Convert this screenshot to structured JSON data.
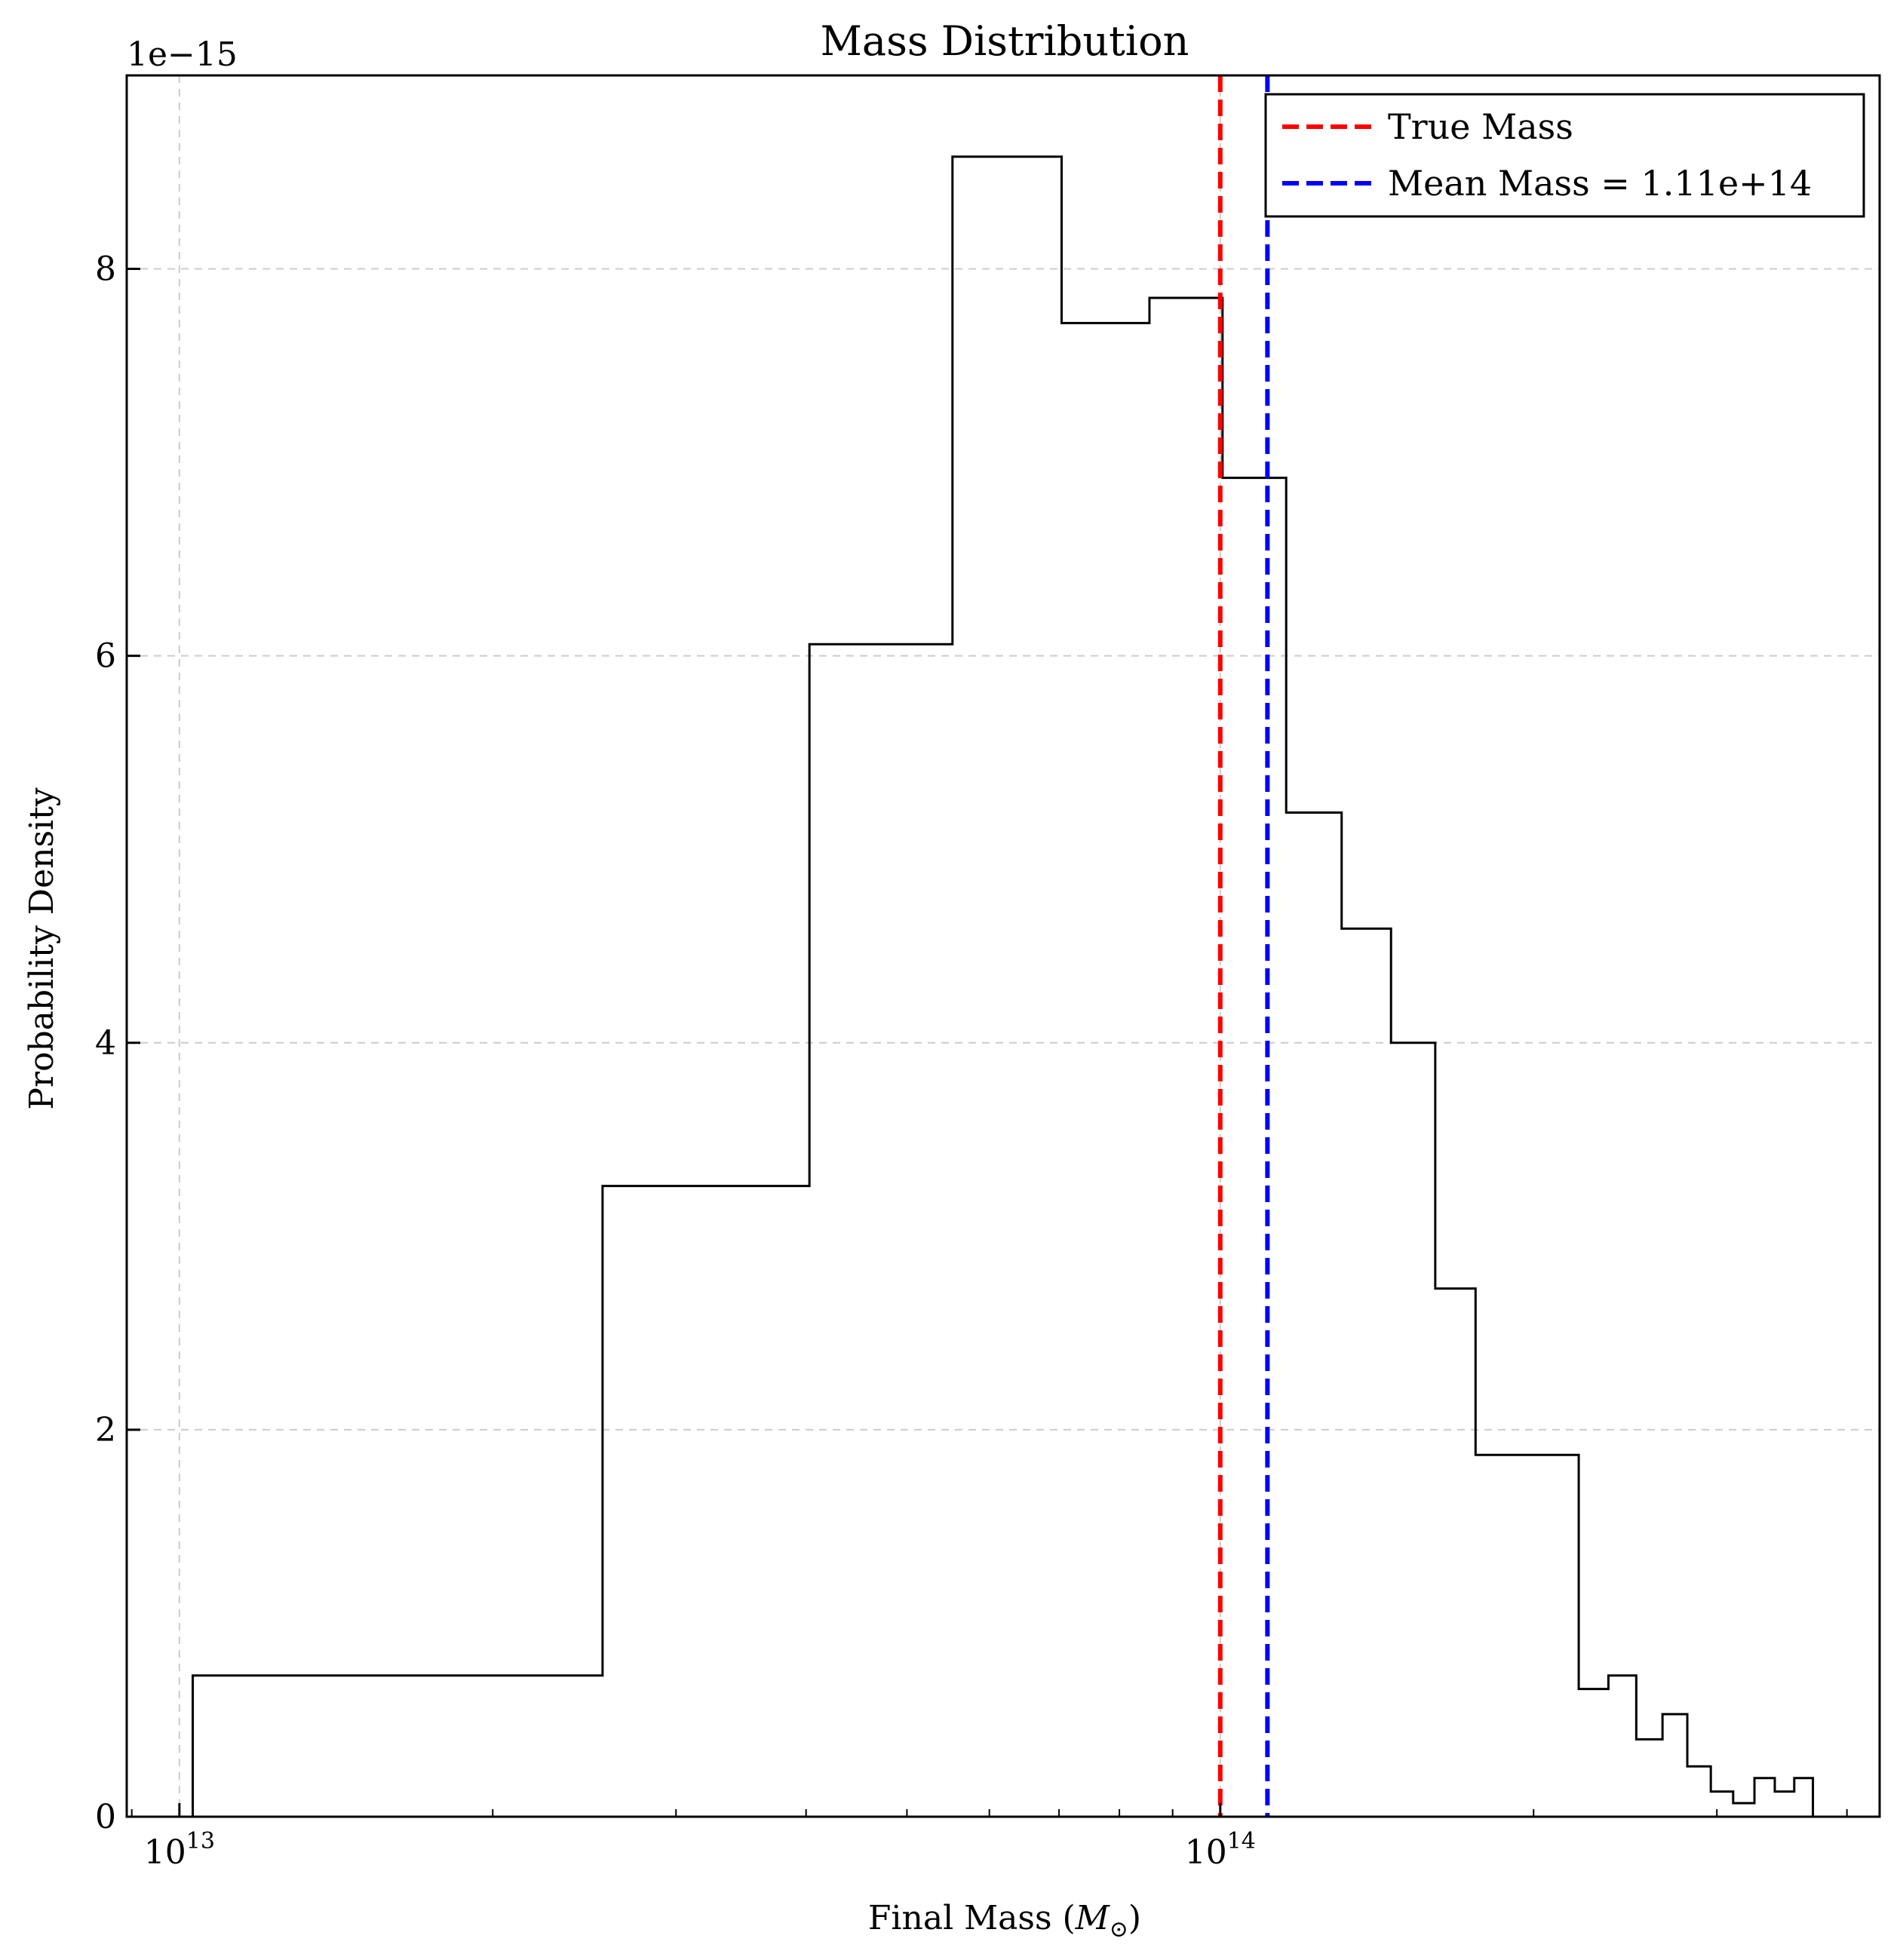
{
  "chart_data": {
    "type": "histogram",
    "title": "Mass Distribution",
    "xlabel": "Final Mass ($M_\\odot$)",
    "xlabel_main": "Final Mass (",
    "xlabel_symbol": "M",
    "xlabel_subscript": "⊙",
    "xlabel_close": ")",
    "ylabel": "Probability Density",
    "y_offset_label": "1e−15",
    "y_scale_factor": 1e-15,
    "xscale": "log",
    "xlim": [
      8900000000000.0,
      430000000000000.0
    ],
    "ylim": [
      0,
      9.0
    ],
    "grid": true,
    "x_ticks": [
      {
        "value": 10000000000000.0,
        "base": "10",
        "exp": "13"
      },
      {
        "value": 100000000000000.0,
        "base": "10",
        "exp": "14"
      }
    ],
    "y_ticks": [
      0,
      2,
      4,
      6,
      8
    ],
    "bins": [
      {
        "x0": 10300000000000.0,
        "x1": 25500000000000.0,
        "value": 0.73
      },
      {
        "x0": 25500000000000.0,
        "x1": 40300000000000.0,
        "value": 3.26
      },
      {
        "x0": 40300000000000.0,
        "x1": 55300000000000.0,
        "value": 6.06
      },
      {
        "x0": 55300000000000.0,
        "x1": 70400000000000.0,
        "value": 8.58
      },
      {
        "x0": 70400000000000.0,
        "x1": 85500000000000.0,
        "value": 7.72
      },
      {
        "x0": 85500000000000.0,
        "x1": 100500000000000.0,
        "value": 7.85
      },
      {
        "x0": 100500000000000.0,
        "x1": 115700000000000.0,
        "value": 6.92
      },
      {
        "x0": 115700000000000.0,
        "x1": 130800000000000.0,
        "value": 5.19
      },
      {
        "x0": 130800000000000.0,
        "x1": 145900000000000.0,
        "value": 4.59
      },
      {
        "x0": 145900000000000.0,
        "x1": 160900000000000.0,
        "value": 4.0
      },
      {
        "x0": 160900000000000.0,
        "x1": 175900000000000.0,
        "value": 2.73
      },
      {
        "x0": 175900000000000.0,
        "x1": 221000000000000.0,
        "value": 1.87
      },
      {
        "x0": 221000000000000.0,
        "x1": 236000000000000.0,
        "value": 0.66
      },
      {
        "x0": 236000000000000.0,
        "x1": 251000000000000.0,
        "value": 0.73
      },
      {
        "x0": 251000000000000.0,
        "x1": 266000000000000.0,
        "value": 0.4
      },
      {
        "x0": 266000000000000.0,
        "x1": 281000000000000.0,
        "value": 0.53
      },
      {
        "x0": 281000000000000.0,
        "x1": 296000000000000.0,
        "value": 0.26
      },
      {
        "x0": 296000000000000.0,
        "x1": 311000000000000.0,
        "value": 0.13
      },
      {
        "x0": 311000000000000.0,
        "x1": 326000000000000.0,
        "value": 0.07
      },
      {
        "x0": 326000000000000.0,
        "x1": 341000000000000.0,
        "value": 0.2
      },
      {
        "x0": 341000000000000.0,
        "x1": 356000000000000.0,
        "value": 0.13
      },
      {
        "x0": 356000000000000.0,
        "x1": 371000000000000.0,
        "value": 0.2
      }
    ],
    "vlines": [
      {
        "name": "True Mass",
        "x": 100000000000000.0,
        "color": "#ff0000",
        "style": "dashed"
      },
      {
        "name": "Mean Mass = 1.11e+14",
        "x": 111000000000000.0,
        "color": "#0000ff",
        "style": "dashed"
      }
    ],
    "legend": {
      "placement": "upper right",
      "entries": [
        "True Mass",
        "Mean Mass = 1.11e+14"
      ]
    },
    "colors": {
      "histogram": "#000000",
      "grid": "#cccccc"
    }
  }
}
